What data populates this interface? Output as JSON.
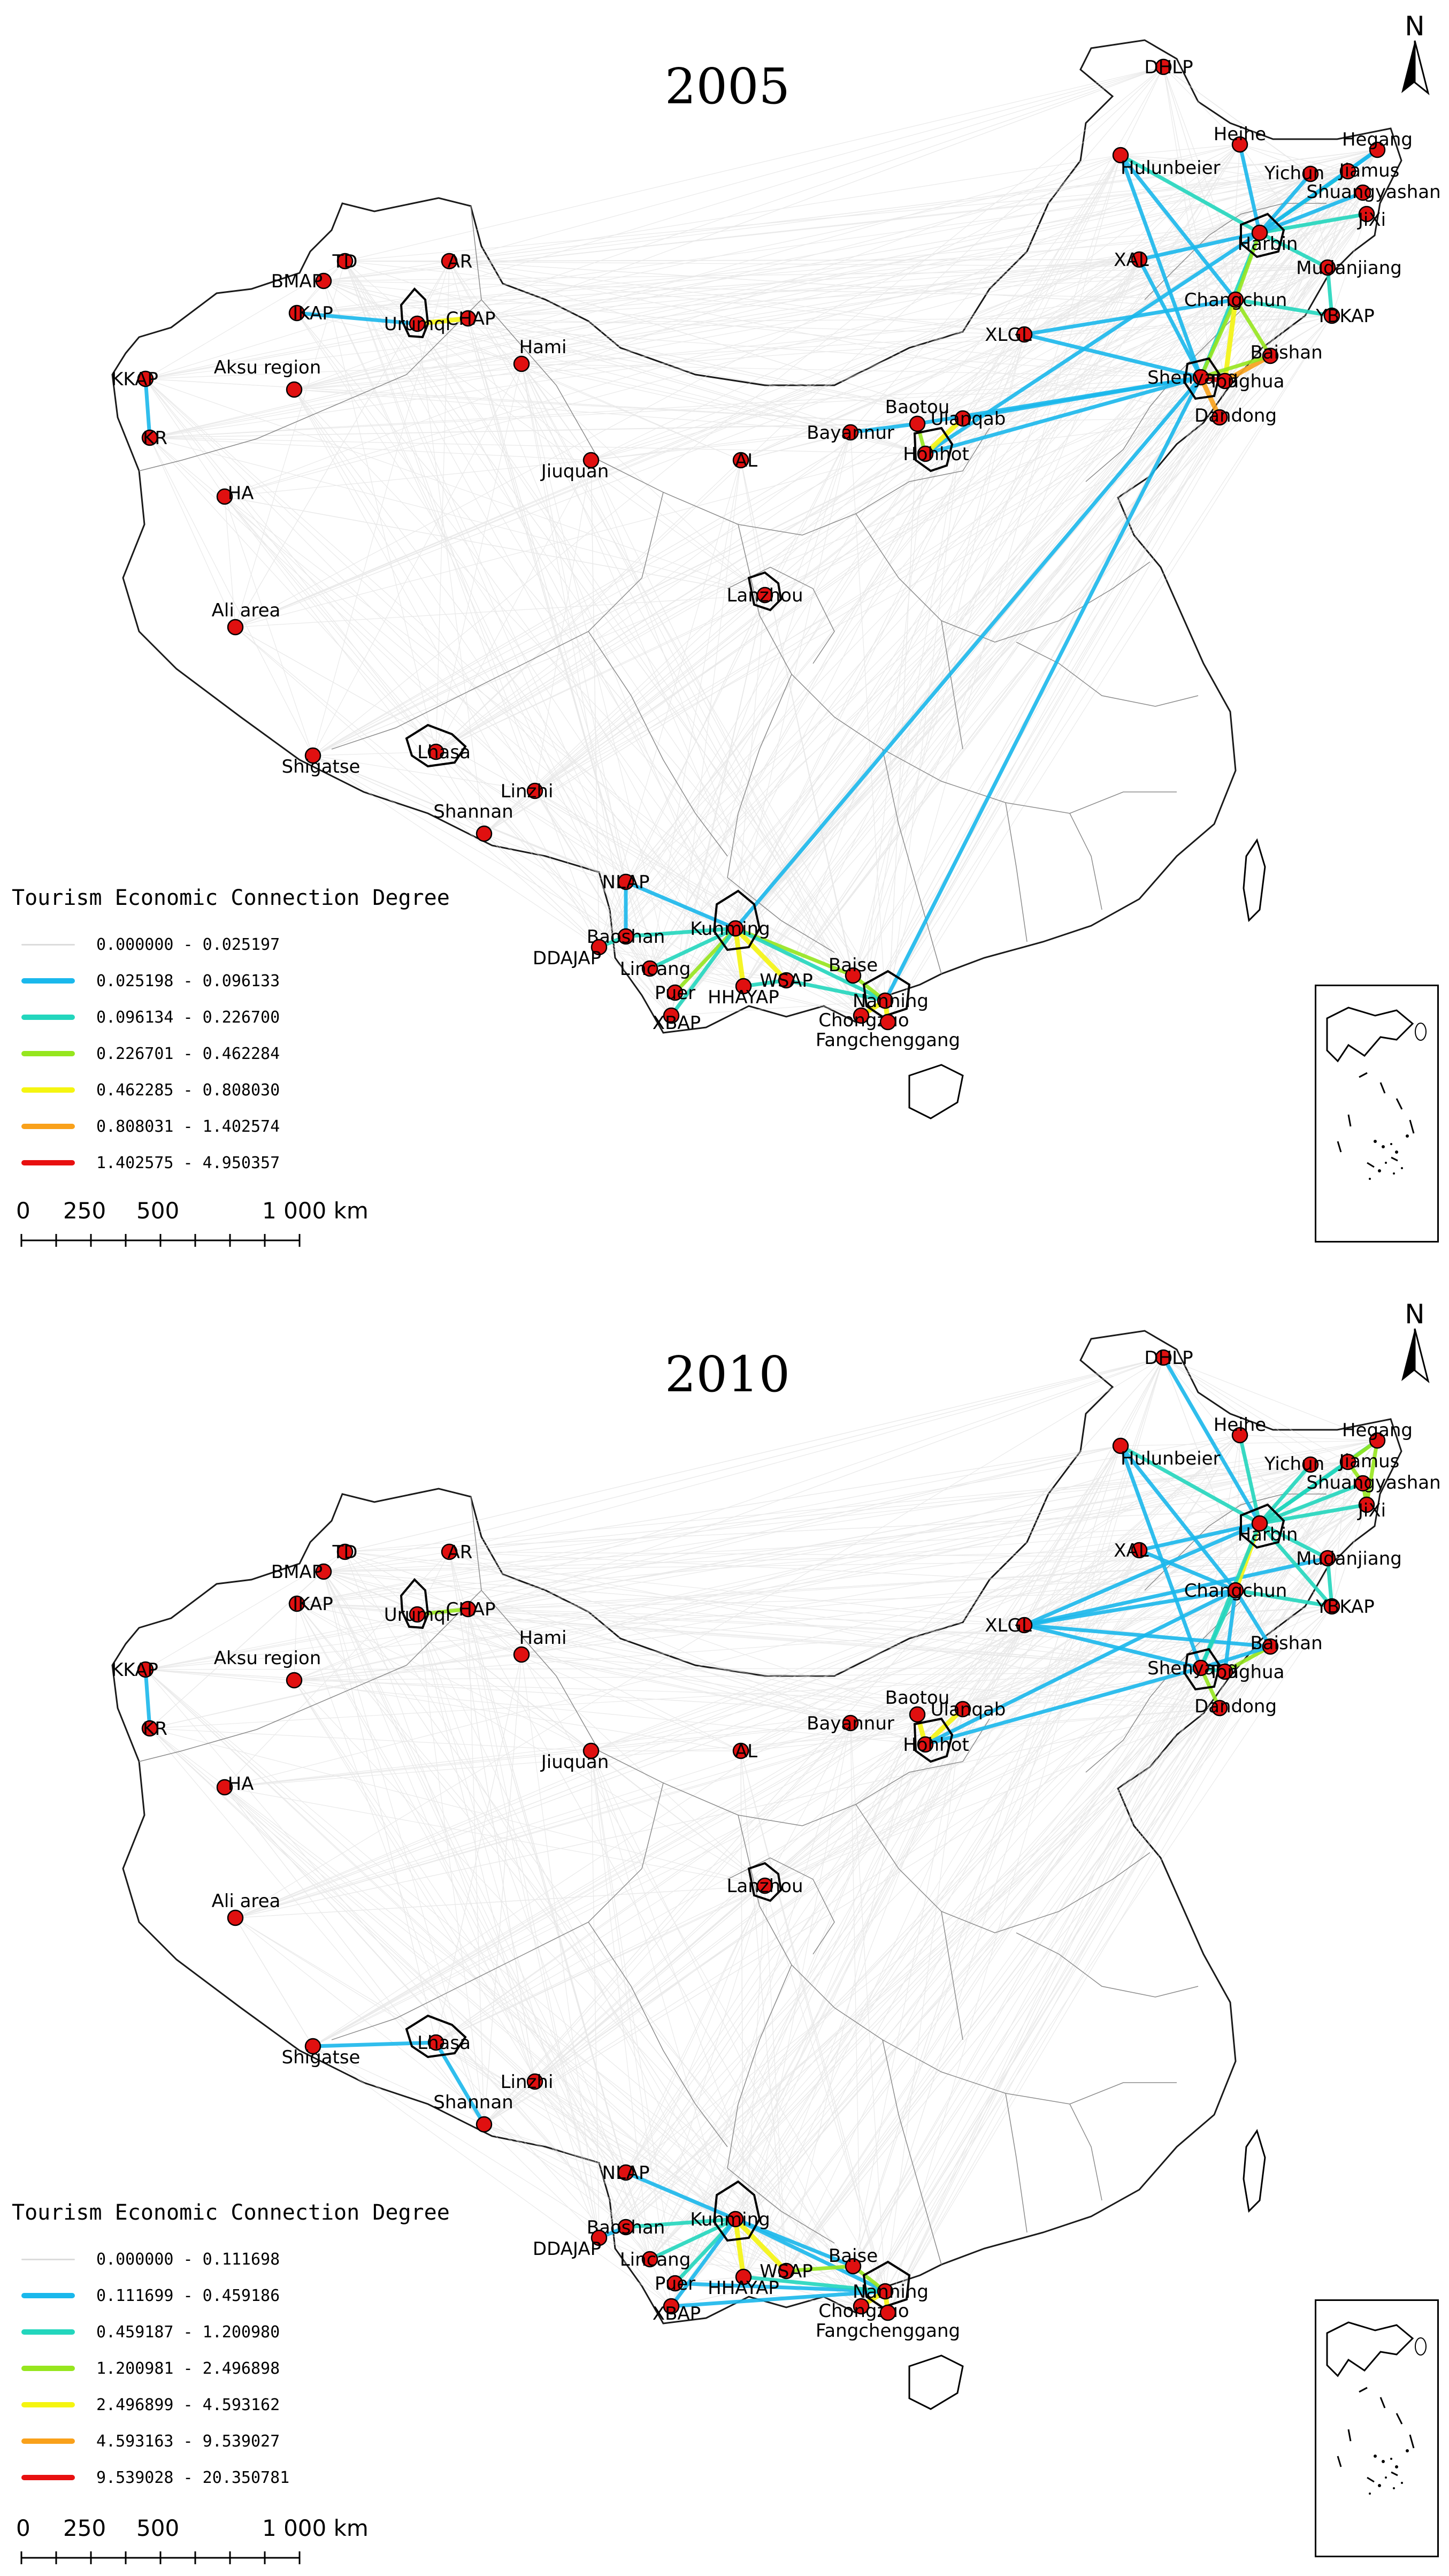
{
  "panels": [
    {
      "year": "2005",
      "legend_title": "Tourism Economic Connection Degree",
      "legend": [
        {
          "label": "0.000000 - 0.025197",
          "color": "#dcdcdc",
          "width": 3
        },
        {
          "label": "0.025198 - 0.096133",
          "color": "#1ab8ec",
          "width": 10
        },
        {
          "label": "0.096134 - 0.226700",
          "color": "#23d6bd",
          "width": 10
        },
        {
          "label": "0.226701 - 0.462284",
          "color": "#96e61e",
          "width": 10
        },
        {
          "label": "0.462285 - 0.808030",
          "color": "#f5f510",
          "width": 10
        },
        {
          "label": "0.808031 - 1.402574",
          "color": "#f9a11b",
          "width": 10
        },
        {
          "label": "1.402575 - 4.950357",
          "color": "#e81010",
          "width": 10
        }
      ],
      "scale": {
        "ticks": [
          "0",
          "250",
          "500",
          "1 000 km"
        ]
      },
      "cities": [
        {
          "label": "DHLP"
        },
        {
          "label": "Heihe"
        },
        {
          "label": "Hegang"
        },
        {
          "label": "Hulunbeier"
        },
        {
          "label": "Yichun"
        },
        {
          "label": "Jiamus"
        },
        {
          "label": "Shuangyashan"
        },
        {
          "label": "JiXi"
        },
        {
          "label": "Harbin"
        },
        {
          "label": "Mudanjiang"
        },
        {
          "label": "XAL"
        },
        {
          "label": "Changchun"
        },
        {
          "label": "YBKAP"
        },
        {
          "label": "XLGL"
        },
        {
          "label": "Baishan"
        },
        {
          "label": "Shenyang"
        },
        {
          "label": "Tonghua"
        },
        {
          "label": "Dandong"
        },
        {
          "label": "Baotou"
        },
        {
          "label": "Ulanqab"
        },
        {
          "label": "Bayannur"
        },
        {
          "label": "Hohhot"
        },
        {
          "label": "TD"
        },
        {
          "label": "AR"
        },
        {
          "label": "BMAP"
        },
        {
          "label": "IKAP"
        },
        {
          "label": "Urumqi"
        },
        {
          "label": "CHAP"
        },
        {
          "label": "Hami"
        },
        {
          "label": "KKAP"
        },
        {
          "label": "Aksu region"
        },
        {
          "label": "KR"
        },
        {
          "label": "Jiuquan"
        },
        {
          "label": "AL"
        },
        {
          "label": "HA"
        },
        {
          "label": "Lanzhou"
        },
        {
          "label": "Ali area"
        },
        {
          "label": "Shigatse"
        },
        {
          "label": "Lhasa"
        },
        {
          "label": "Linzhi"
        },
        {
          "label": "Shannan"
        },
        {
          "label": "NLAP"
        },
        {
          "label": "Kunming"
        },
        {
          "label": "Baoshan"
        },
        {
          "label": "DDAJAP"
        },
        {
          "label": "Lincang"
        },
        {
          "label": "Baise"
        },
        {
          "label": "Puer"
        },
        {
          "label": "WSAP"
        },
        {
          "label": "HHAYAP"
        },
        {
          "label": "Nanning"
        },
        {
          "label": "Chongzuo"
        },
        {
          "label": "XBAP"
        },
        {
          "label": "Fangchenggang"
        }
      ]
    },
    {
      "year": "2010",
      "legend_title": "Tourism Economic Connection Degree",
      "legend": [
        {
          "label": "0.000000 - 0.111698",
          "color": "#dcdcdc",
          "width": 3
        },
        {
          "label": "0.111699 - 0.459186",
          "color": "#1ab8ec",
          "width": 10
        },
        {
          "label": "0.459187 - 1.200980",
          "color": "#23d6bd",
          "width": 10
        },
        {
          "label": "1.200981 - 2.496898",
          "color": "#96e61e",
          "width": 10
        },
        {
          "label": "2.496899 - 4.593162",
          "color": "#f5f510",
          "width": 10
        },
        {
          "label": "4.593163 - 9.539027",
          "color": "#f9a11b",
          "width": 10
        },
        {
          "label": "9.539028 - 20.350781",
          "color": "#e81010",
          "width": 10
        }
      ],
      "scale": {
        "ticks": [
          "0",
          "250",
          "500",
          "1 000 km"
        ]
      },
      "cities": [
        {
          "label": "DHLP"
        },
        {
          "label": "Heihe"
        },
        {
          "label": "Hegang"
        },
        {
          "label": "Hulunbeier"
        },
        {
          "label": "Yichun"
        },
        {
          "label": "Jiamus"
        },
        {
          "label": "Shuangyashan"
        },
        {
          "label": "JiXi"
        },
        {
          "label": "Harbin"
        },
        {
          "label": "Mudanjiang"
        },
        {
          "label": "XAL"
        },
        {
          "label": "Changchun"
        },
        {
          "label": "YBKAP"
        },
        {
          "label": "XLGL"
        },
        {
          "label": "Baishan"
        },
        {
          "label": "Shenyang"
        },
        {
          "label": "Tonghua"
        },
        {
          "label": "Dandong"
        },
        {
          "label": "Baotou"
        },
        {
          "label": "Ulanqab"
        },
        {
          "label": "Bayannur"
        },
        {
          "label": "Hohhot"
        },
        {
          "label": "TD"
        },
        {
          "label": "AR"
        },
        {
          "label": "BMAP"
        },
        {
          "label": "IKAP"
        },
        {
          "label": "Urumqi"
        },
        {
          "label": "CHAP"
        },
        {
          "label": "Hami"
        },
        {
          "label": "KKAP"
        },
        {
          "label": "Aksu region"
        },
        {
          "label": "KR"
        },
        {
          "label": "Jiuquan"
        },
        {
          "label": "AL"
        },
        {
          "label": "HA"
        },
        {
          "label": "Lanzhou"
        },
        {
          "label": "Ali area"
        },
        {
          "label": "Shigatse"
        },
        {
          "label": "Lhasa"
        },
        {
          "label": "Linzhi"
        },
        {
          "label": "Shannan"
        },
        {
          "label": "NLAP"
        },
        {
          "label": "Kunming"
        },
        {
          "label": "Baoshan"
        },
        {
          "label": "DDAJAP"
        },
        {
          "label": "Lincang"
        },
        {
          "label": "Baise"
        },
        {
          "label": "Puer"
        },
        {
          "label": "WSAP"
        },
        {
          "label": "HHAYAP"
        },
        {
          "label": "Nanning"
        },
        {
          "label": "Chongzuo"
        },
        {
          "label": "XBAP"
        },
        {
          "label": "Fangchenggang"
        }
      ]
    }
  ],
  "north_label": "N"
}
